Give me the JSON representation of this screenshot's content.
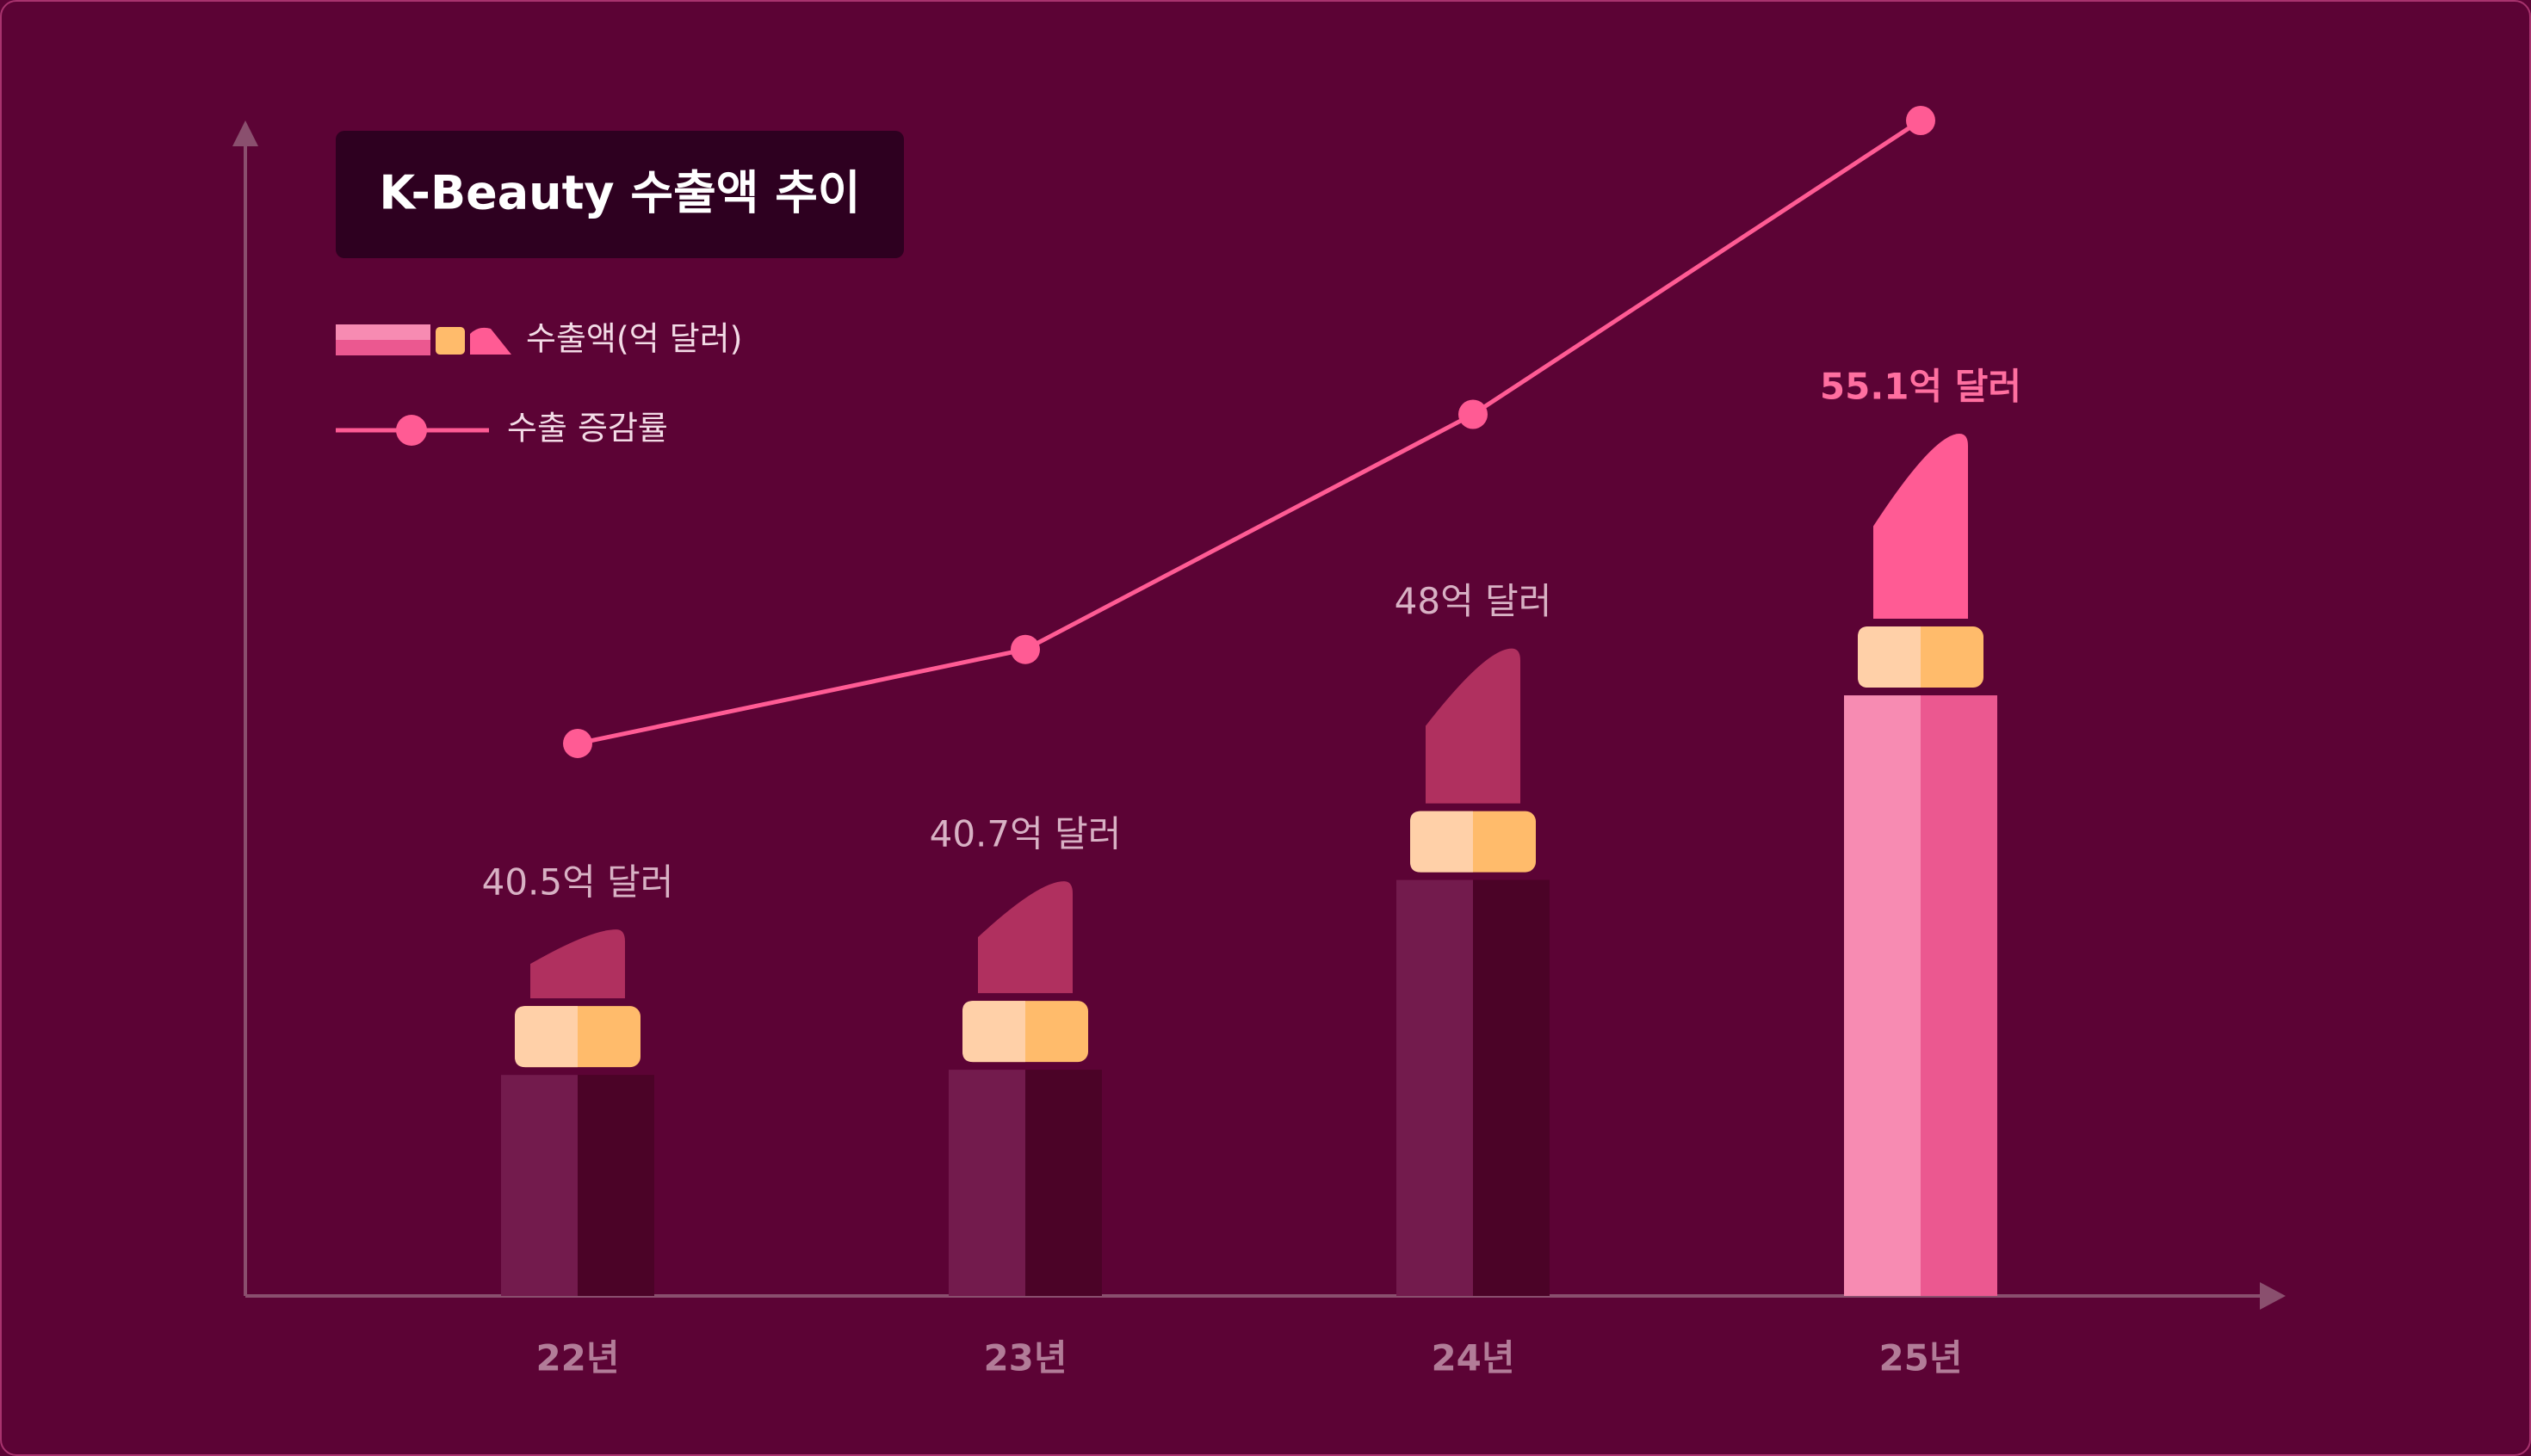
{
  "chart_data": {
    "type": "bar",
    "title": "K-Beauty 수출액 추이",
    "categories": [
      "22년",
      "23년",
      "24년",
      "25년"
    ],
    "series": [
      {
        "name": "수출액(억 달러)",
        "type": "bar",
        "values": [
          40.5,
          40.7,
          48,
          55.1
        ],
        "value_labels": [
          "40.5억 달러",
          "40.7억 달러",
          "48억 달러",
          "55.1억 달러"
        ],
        "colors": [
          "#731b4d",
          "#731b4d",
          "#731b4d",
          "#f78bb2"
        ]
      },
      {
        "name": "수출 증감률",
        "type": "line",
        "axis": "y2",
        "color": "#ff5b94",
        "values": [
          47,
          55,
          75,
          100
        ]
      }
    ],
    "ylim": [
      32,
      60
    ],
    "y2lim": [
      0,
      100
    ]
  }
}
